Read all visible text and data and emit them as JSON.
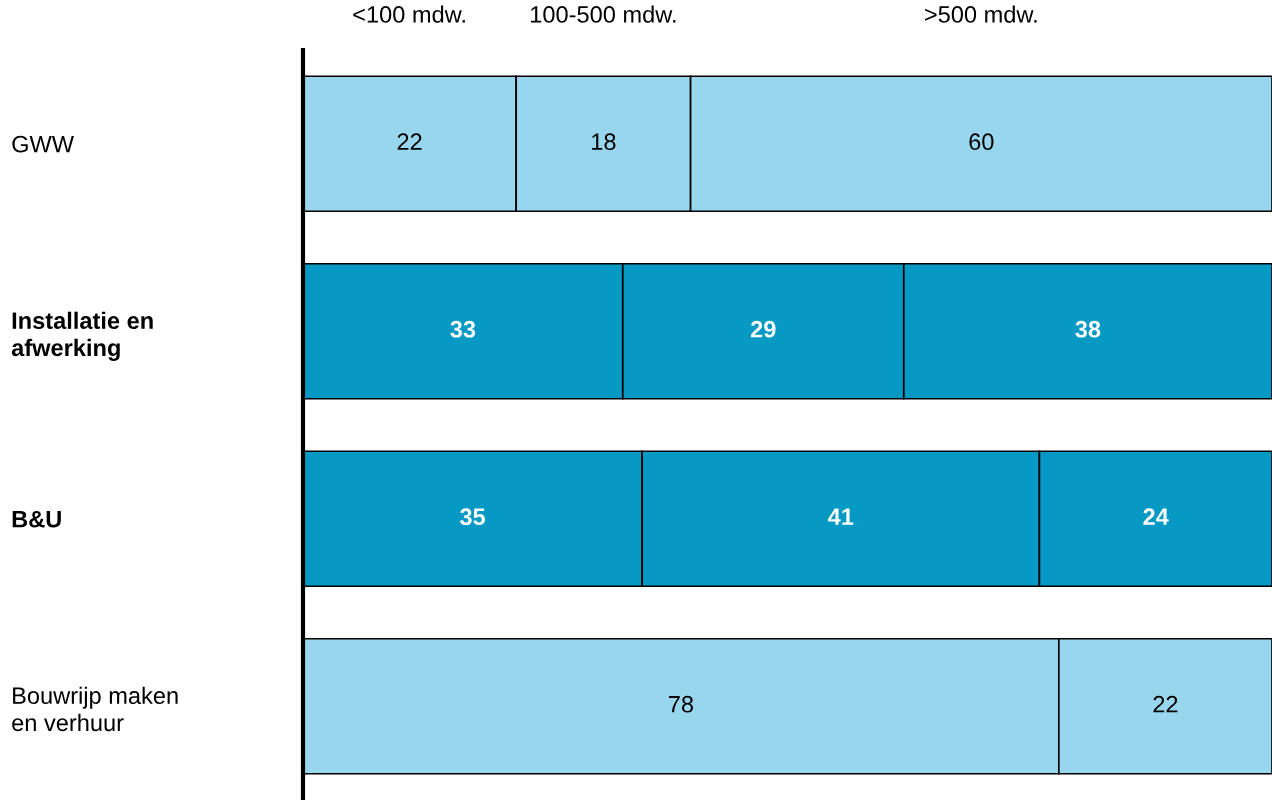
{
  "chart_data": {
    "type": "bar",
    "orientation": "horizontal",
    "stacked": true,
    "data_labels": true,
    "legend": false,
    "tick_labels": "y",
    "grid": false,
    "categories": [
      "GWW",
      "Installatie en\nafwerking",
      "B&U",
      "Bouwrijp maken\nen verhuur"
    ],
    "series": [
      {
        "name": "<100 mdw.",
        "colors": [
          "#98d6ee",
          "#0599c3",
          "#0599c3",
          "#98d6ee"
        ],
        "values": [
          22,
          33,
          35,
          78
        ]
      },
      {
        "name": "100-500 mdw.",
        "colors": [
          "#98d6ee",
          "#0599c3",
          "#0599c3",
          "#98d6ee"
        ],
        "values": [
          18,
          29,
          41,
          22
        ]
      },
      {
        "name": ">500 mdw.",
        "colors": [
          "#98d6ee",
          "#0599c3",
          "#0599c3",
          "#98d6ee"
        ],
        "values": [
          60,
          38,
          24,
          null
        ]
      }
    ]
  }
}
